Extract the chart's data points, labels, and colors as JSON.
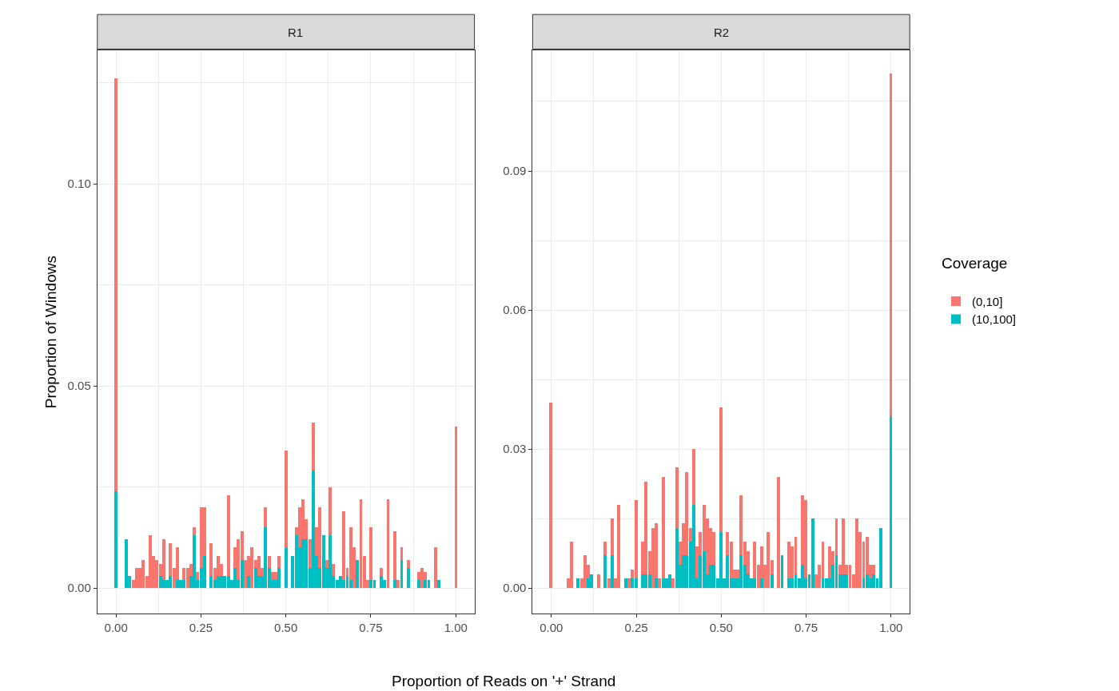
{
  "chart_data": [
    {
      "type": "bar",
      "title": "R1",
      "stacked": true,
      "xlabel": "Proportion of Reads on '+' Strand",
      "ylabel": "Proportion of Windows",
      "legend_title": "Coverage",
      "legend": "right",
      "grid": true,
      "x": [
        0,
        0.03,
        0.04,
        0.05,
        0.06,
        0.07,
        0.08,
        0.09,
        0.1,
        0.11,
        0.12,
        0.13,
        0.14,
        0.15,
        0.16,
        0.17,
        0.18,
        0.19,
        0.2,
        0.21,
        0.22,
        0.23,
        0.24,
        0.25,
        0.26,
        0.28,
        0.29,
        0.3,
        0.31,
        0.32,
        0.33,
        0.34,
        0.35,
        0.36,
        0.37,
        0.38,
        0.39,
        0.4,
        0.41,
        0.42,
        0.43,
        0.44,
        0.45,
        0.46,
        0.47,
        0.48,
        0.5,
        0.52,
        0.53,
        0.54,
        0.55,
        0.56,
        0.57,
        0.58,
        0.59,
        0.6,
        0.61,
        0.62,
        0.63,
        0.64,
        0.65,
        0.66,
        0.67,
        0.68,
        0.69,
        0.7,
        0.71,
        0.72,
        0.73,
        0.74,
        0.75,
        0.76,
        0.78,
        0.79,
        0.8,
        0.82,
        0.83,
        0.84,
        0.86,
        0.89,
        0.9,
        0.91,
        0.92,
        0.94,
        0.95,
        1
      ],
      "xlim": [
        -0.055,
        1.055
      ],
      "xticks": [
        {
          "value": 0,
          "label": "0.00"
        },
        {
          "value": 0.25,
          "label": "0.25"
        },
        {
          "value": 0.5,
          "label": "0.50"
        },
        {
          "value": 0.75,
          "label": "0.75"
        },
        {
          "value": 1,
          "label": "1.00"
        }
      ],
      "ylim": [
        -0.0063,
        0.133
      ],
      "yticks": [
        {
          "value": 0,
          "label": "0.00"
        },
        {
          "value": 0.05,
          "label": "0.05"
        },
        {
          "value": 0.1,
          "label": "0.10"
        }
      ],
      "series": [
        {
          "name": "(10,100]",
          "color": "#00bfc4",
          "values": [
            0.024,
            0.012,
            0.003,
            null,
            null,
            null,
            null,
            null,
            null,
            null,
            null,
            0.003,
            0.002,
            0.002,
            0.003,
            null,
            0.002,
            0.002,
            0.002,
            null,
            0.003,
            0.013,
            0.002,
            0.005,
            0.008,
            0.003,
            0.002,
            0.003,
            0.003,
            0.003,
            0.003,
            0.002,
            0.005,
            0.002,
            0.007,
            null,
            0.003,
            null,
            0.005,
            0.003,
            0.003,
            0.015,
            0.005,
            0.002,
            0.002,
            0.005,
            0.01,
            0.008,
            0.013,
            0.01,
            0.012,
            0.012,
            0.005,
            0.029,
            0.008,
            0.005,
            0.013,
            0.005,
            0.013,
            0.003,
            0.002,
            0.003,
            0.002,
            0.003,
            0.002,
            null,
            0.007,
            null,
            null,
            null,
            0.002,
            0.002,
            0.003,
            0.002,
            null,
            0.002,
            null,
            0.007,
            0.005,
            0.002,
            null,
            0.002,
            0.002,
            null,
            0.002,
            null
          ]
        },
        {
          "name": "(0,10]",
          "color": "#f8766d",
          "values": [
            0.102,
            null,
            null,
            0.002,
            0.005,
            0.005,
            0.007,
            0.003,
            0.013,
            0.008,
            0.007,
            0.003,
            0.01,
            null,
            0.008,
            0.005,
            0.008,
            null,
            0.003,
            0.005,
            0.003,
            0.002,
            0.002,
            0.015,
            0.012,
            0.008,
            0.003,
            0.005,
            0.003,
            null,
            0.02,
            null,
            0.005,
            0.01,
            0.007,
            0.007,
            0.005,
            0.01,
            0.002,
            0.005,
            0.002,
            0.005,
            0.003,
            0.002,
            0.002,
            0.003,
            0.024,
            null,
            0.002,
            0.01,
            0.01,
            0.005,
            0.007,
            0.012,
            0.007,
            0.015,
            null,
            0.002,
            0.012,
            0.003,
            null,
            null,
            0.017,
            0.002,
            0.013,
            0.01,
            null,
            0.022,
            0.008,
            0.002,
            0.013,
            null,
            0.002,
            null,
            0.022,
            0.012,
            0.002,
            0.003,
            0.002,
            0.002,
            0.005,
            0.002,
            null,
            0.01,
            null,
            0.04
          ]
        }
      ]
    },
    {
      "type": "bar",
      "title": "R2",
      "stacked": true,
      "legend": "right",
      "grid": true,
      "x": [
        0,
        0.05,
        0.06,
        0.08,
        0.09,
        0.1,
        0.11,
        0.12,
        0.14,
        0.16,
        0.17,
        0.18,
        0.19,
        0.2,
        0.22,
        0.23,
        0.24,
        0.25,
        0.27,
        0.28,
        0.29,
        0.3,
        0.31,
        0.32,
        0.33,
        0.34,
        0.35,
        0.36,
        0.37,
        0.38,
        0.39,
        0.4,
        0.41,
        0.42,
        0.43,
        0.44,
        0.45,
        0.46,
        0.47,
        0.48,
        0.49,
        0.5,
        0.51,
        0.52,
        0.53,
        0.54,
        0.55,
        0.56,
        0.57,
        0.58,
        0.59,
        0.6,
        0.61,
        0.62,
        0.63,
        0.64,
        0.65,
        0.67,
        0.68,
        0.7,
        0.71,
        0.72,
        0.73,
        0.74,
        0.75,
        0.76,
        0.77,
        0.78,
        0.79,
        0.8,
        0.81,
        0.82,
        0.83,
        0.84,
        0.85,
        0.86,
        0.87,
        0.88,
        0.89,
        0.9,
        0.91,
        0.92,
        0.93,
        0.94,
        0.95,
        0.96,
        0.97,
        1
      ],
      "xlim": [
        -0.055,
        1.055
      ],
      "xticks": [
        {
          "value": 0,
          "label": "0.00"
        },
        {
          "value": 0.25,
          "label": "0.25"
        },
        {
          "value": 0.5,
          "label": "0.50"
        },
        {
          "value": 0.75,
          "label": "0.75"
        },
        {
          "value": 1,
          "label": "1.00"
        }
      ],
      "ylim": [
        -0.0055,
        0.116
      ],
      "yticks": [
        {
          "value": 0,
          "label": "0.00"
        },
        {
          "value": 0.03,
          "label": "0.03"
        },
        {
          "value": 0.06,
          "label": "0.06"
        },
        {
          "value": 0.09,
          "label": "0.09"
        }
      ],
      "series": [
        {
          "color": "#00bfc4",
          "values": [
            null,
            null,
            null,
            0.002,
            null,
            null,
            0.002,
            0.003,
            null,
            0.007,
            null,
            0.007,
            null,
            null,
            0.002,
            null,
            0.002,
            0.002,
            0.003,
            0.003,
            0.003,
            null,
            0.002,
            null,
            0.002,
            0.002,
            0.003,
            null,
            0.013,
            0.005,
            0.007,
            0.007,
            0.01,
            0.018,
            0.002,
            0.007,
            0.008,
            0.003,
            0.005,
            0.005,
            0.002,
            0.012,
            0.002,
            0.007,
            0.002,
            0.002,
            0.002,
            0.007,
            0.005,
            0.003,
            0.002,
            0.002,
            null,
            0.002,
            null,
            null,
            0.003,
            null,
            0.007,
            0.002,
            0.002,
            0.003,
            0.002,
            0.005,
            0.002,
            0.003,
            0.015,
            null,
            null,
            0.002,
            0.002,
            0.002,
            0.005,
            0.007,
            0.003,
            0.003,
            0.003,
            null,
            null,
            null,
            null,
            0.002,
            0.003,
            0.002,
            0.003,
            0.002,
            0.013,
            0.037
          ]
        },
        {
          "color": "#f8766d",
          "values": [
            0.04,
            0.002,
            0.01,
            null,
            0.002,
            0.007,
            0.003,
            null,
            0.003,
            0.003,
            0.002,
            0.008,
            0.002,
            0.018,
            null,
            0.002,
            0.002,
            0.017,
            0.007,
            0.02,
            0.005,
            0.013,
            0.012,
            0.002,
            0.022,
            null,
            null,
            0.002,
            0.013,
            0.005,
            0.007,
            0.018,
            0.003,
            0.012,
            0.007,
            0.005,
            0.01,
            0.012,
            0.008,
            0.007,
            null,
            0.027,
            null,
            0.005,
            0.008,
            0.002,
            0.002,
            0.013,
            0.005,
            0.005,
            null,
            0.008,
            0.005,
            0.007,
            0.005,
            0.012,
            0.003,
            0.024,
            null,
            0.008,
            0.007,
            0.008,
            null,
            0.015,
            0.017,
            null,
            null,
            0.003,
            0.005,
            0.008,
            null,
            0.007,
            0.003,
            0.008,
            0.002,
            0.012,
            0.002,
            0.005,
            0.003,
            0.015,
            0.012,
            0.008,
            0.008,
            0.003,
            0.002,
            null,
            null,
            0.074
          ]
        }
      ]
    }
  ]
}
